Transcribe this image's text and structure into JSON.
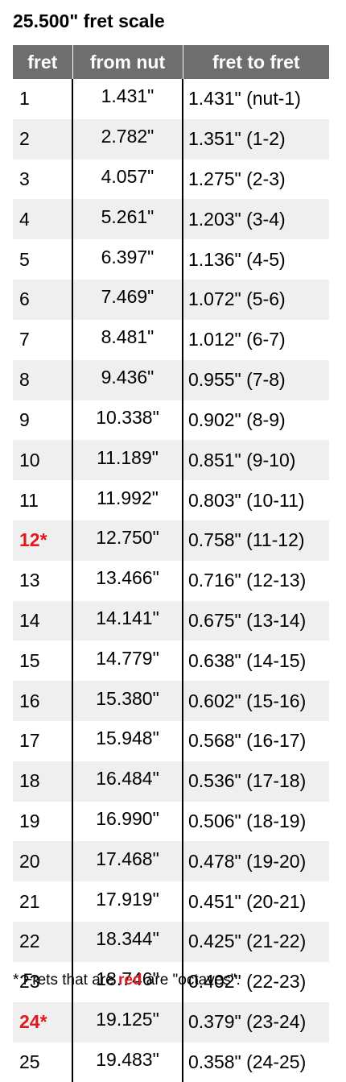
{
  "title": "25.500\" fret scale",
  "colors": {
    "header_bg": "#6e6e6e",
    "row_alt_bg": "#efefef",
    "octave_red": "#e0191f"
  },
  "table": {
    "headers": [
      "fret",
      "from nut",
      "fret to fret"
    ],
    "rows": [
      {
        "fret": "1",
        "from_nut": "1.431\"",
        "fret_to_fret": "1.431\" (nut-1)",
        "octave": false
      },
      {
        "fret": "2",
        "from_nut": "2.782\"",
        "fret_to_fret": "1.351\" (1-2)",
        "octave": false
      },
      {
        "fret": "3",
        "from_nut": "4.057\"",
        "fret_to_fret": "1.275\" (2-3)",
        "octave": false
      },
      {
        "fret": "4",
        "from_nut": "5.261\"",
        "fret_to_fret": "1.203\" (3-4)",
        "octave": false
      },
      {
        "fret": "5",
        "from_nut": "6.397\"",
        "fret_to_fret": "1.136\" (4-5)",
        "octave": false
      },
      {
        "fret": "6",
        "from_nut": "7.469\"",
        "fret_to_fret": "1.072\" (5-6)",
        "octave": false
      },
      {
        "fret": "7",
        "from_nut": "8.481\"",
        "fret_to_fret": "1.012\" (6-7)",
        "octave": false
      },
      {
        "fret": "8",
        "from_nut": "9.436\"",
        "fret_to_fret": "0.955\" (7-8)",
        "octave": false
      },
      {
        "fret": "9",
        "from_nut": "10.338\"",
        "fret_to_fret": "0.902\" (8-9)",
        "octave": false
      },
      {
        "fret": "10",
        "from_nut": "11.189\"",
        "fret_to_fret": "0.851\" (9-10)",
        "octave": false
      },
      {
        "fret": "11",
        "from_nut": "11.992\"",
        "fret_to_fret": "0.803\" (10-11)",
        "octave": false
      },
      {
        "fret": "12*",
        "from_nut": "12.750\"",
        "fret_to_fret": "0.758\" (11-12)",
        "octave": true
      },
      {
        "fret": "13",
        "from_nut": "13.466\"",
        "fret_to_fret": "0.716\" (12-13)",
        "octave": false
      },
      {
        "fret": "14",
        "from_nut": "14.141\"",
        "fret_to_fret": "0.675\" (13-14)",
        "octave": false
      },
      {
        "fret": "15",
        "from_nut": "14.779\"",
        "fret_to_fret": "0.638\" (14-15)",
        "octave": false
      },
      {
        "fret": "16",
        "from_nut": "15.380\"",
        "fret_to_fret": "0.602\" (15-16)",
        "octave": false
      },
      {
        "fret": "17",
        "from_nut": "15.948\"",
        "fret_to_fret": "0.568\" (16-17)",
        "octave": false
      },
      {
        "fret": "18",
        "from_nut": "16.484\"",
        "fret_to_fret": "0.536\" (17-18)",
        "octave": false
      },
      {
        "fret": "19",
        "from_nut": "16.990\"",
        "fret_to_fret": "0.506\" (18-19)",
        "octave": false
      },
      {
        "fret": "20",
        "from_nut": "17.468\"",
        "fret_to_fret": "0.478\" (19-20)",
        "octave": false
      },
      {
        "fret": "21",
        "from_nut": "17.919\"",
        "fret_to_fret": "0.451\" (20-21)",
        "octave": false
      },
      {
        "fret": "22",
        "from_nut": "18.344\"",
        "fret_to_fret": "0.425\" (21-22)",
        "octave": false
      },
      {
        "fret": "23",
        "from_nut": "18.746\"",
        "fret_to_fret": "0.402\" (22-23)",
        "octave": false
      },
      {
        "fret": "24*",
        "from_nut": "19.125\"",
        "fret_to_fret": "0.379\" (23-24)",
        "octave": true
      },
      {
        "fret": "25",
        "from_nut": "19.483\"",
        "fret_to_fret": "0.358\" (24-25)",
        "octave": false
      }
    ]
  },
  "footnote": {
    "prefix": "* Frets that are ",
    "highlight": "red",
    "suffix": " are \"octaves\"."
  }
}
